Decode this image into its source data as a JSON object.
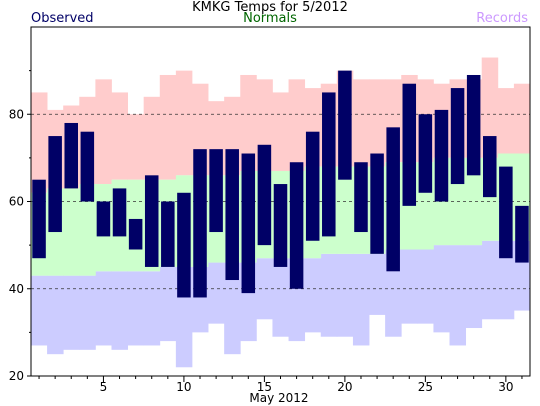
{
  "chart_data": {
    "type": "bar",
    "title": "KMKG Temps for 5/2012",
    "xlabel": "May 2012",
    "ylabel": "",
    "xlim": [
      0.5,
      31.5
    ],
    "ylim": [
      20,
      100
    ],
    "y_ticks": [
      20,
      40,
      60,
      80
    ],
    "x_ticks": [
      5,
      10,
      15,
      20,
      25,
      30
    ],
    "gridlines_y": [
      40,
      60,
      80
    ],
    "legend": {
      "placement": "top",
      "entries": [
        {
          "label": "Observed",
          "color": "#000066"
        },
        {
          "label": "Normals",
          "color": "#006600"
        },
        {
          "label": "Records",
          "color": "#cc99ff"
        }
      ]
    },
    "days": [
      1,
      2,
      3,
      4,
      5,
      6,
      7,
      8,
      9,
      10,
      11,
      12,
      13,
      14,
      15,
      16,
      17,
      18,
      19,
      20,
      21,
      22,
      23,
      24,
      25,
      26,
      27,
      28,
      29,
      30,
      31
    ],
    "series": [
      {
        "name": "Observed",
        "color": "#000066",
        "high": [
          65,
          75,
          78,
          76,
          60,
          63,
          56,
          66,
          60,
          62,
          72,
          72,
          72,
          71,
          73,
          64,
          69,
          76,
          85,
          90,
          69,
          71,
          77,
          87,
          80,
          81,
          86,
          89,
          75,
          68,
          59
        ],
        "low": [
          47,
          53,
          63,
          60,
          52,
          52,
          49,
          45,
          45,
          38,
          38,
          53,
          42,
          39,
          50,
          45,
          40,
          51,
          52,
          65,
          53,
          48,
          44,
          59,
          62,
          60,
          64,
          66,
          61,
          47,
          46
        ]
      },
      {
        "name": "Normals",
        "color": "#ccffcc",
        "high": [
          62,
          63,
          63,
          64,
          64,
          65,
          65,
          65,
          65,
          66,
          66,
          66,
          66,
          67,
          67,
          67,
          67,
          68,
          68,
          68,
          68,
          68,
          69,
          69,
          69,
          70,
          70,
          70,
          70,
          71,
          71
        ],
        "low": [
          43,
          43,
          43,
          43,
          44,
          44,
          44,
          44,
          45,
          45,
          45,
          46,
          46,
          46,
          47,
          47,
          47,
          47,
          48,
          48,
          48,
          48,
          49,
          49,
          49,
          50,
          50,
          50,
          51,
          51,
          51
        ]
      },
      {
        "name": "Records",
        "color": "#ffcccc",
        "high": [
          85,
          81,
          82,
          84,
          88,
          85,
          80,
          84,
          89,
          90,
          87,
          83,
          84,
          89,
          88,
          85,
          88,
          86,
          87,
          90,
          88,
          88,
          88,
          89,
          88,
          87,
          88,
          88,
          93,
          86,
          87
        ],
        "low": [
          27,
          25,
          26,
          26,
          27,
          26,
          27,
          27,
          28,
          22,
          30,
          32,
          25,
          28,
          33,
          29,
          28,
          30,
          29,
          29,
          27,
          34,
          29,
          32,
          32,
          30,
          27,
          31,
          33,
          33,
          35
        ]
      }
    ]
  }
}
